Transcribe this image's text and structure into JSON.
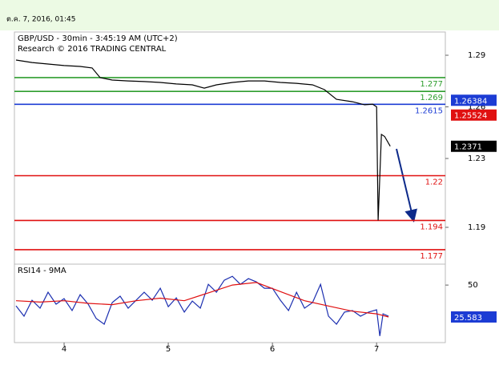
{
  "header": {
    "date": "ต.ค. 7, 2016, 01:45"
  },
  "chart_data": [
    {
      "type": "line",
      "title": "GBP/USD - 30min - 3:45:19 AM (UTC+2)",
      "subtitle": "Research © 2016 TRADING CENTRAL",
      "xlim": [
        3.523,
        7.66
      ],
      "ylim": [
        1.1686,
        1.3035
      ],
      "yticks": [
        1.29,
        1.26,
        1.23,
        1.19
      ],
      "series": [
        {
          "color": "#000000",
          "x": [
            3.538,
            3.692,
            3.846,
            4.0,
            4.154,
            4.269,
            4.346,
            4.462,
            4.615,
            4.769,
            4.923,
            5.077,
            5.231,
            5.346,
            5.462,
            5.615,
            5.769,
            5.923,
            6.077,
            6.231,
            6.385,
            6.5,
            6.615,
            6.769,
            6.885,
            6.962,
            7.0,
            7.015,
            7.046,
            7.077,
            7.131
          ],
          "values": [
            1.2872,
            1.2858,
            1.2849,
            1.284,
            1.2835,
            1.2826,
            1.277,
            1.2756,
            1.2751,
            1.2747,
            1.2742,
            1.2733,
            1.2728,
            1.2709,
            1.2728,
            1.2742,
            1.2751,
            1.2751,
            1.2742,
            1.2737,
            1.2728,
            1.27,
            1.2644,
            1.263,
            1.2612,
            1.2616,
            1.26,
            1.194,
            1.244,
            1.2428,
            1.2371
          ]
        }
      ],
      "levels": [
        {
          "value": 1.277,
          "color": "#2e9e2e"
        },
        {
          "value": 1.269,
          "color": "#2e9e2e"
        },
        {
          "value": 1.2615,
          "color": "#1c3cd4"
        },
        {
          "value": 1.22,
          "color": "#e01010"
        },
        {
          "value": 1.194,
          "color": "#e01010"
        },
        {
          "value": 1.177,
          "color": "#e01010"
        }
      ],
      "markers": [
        {
          "value": 1.26384,
          "color": "#1c3cd4"
        },
        {
          "value": 1.25524,
          "color": "#e01010"
        },
        {
          "value": 1.2371,
          "color": "#000000"
        }
      ]
    },
    {
      "type": "line",
      "title": "RSI14 - 9MA",
      "xlim": [
        3.523,
        7.66
      ],
      "ylim": [
        6,
        66
      ],
      "yticks": [
        50
      ],
      "xticks": [
        4,
        5,
        6,
        7
      ],
      "series": [
        {
          "color": "#1c2fb0",
          "x": [
            3.538,
            3.615,
            3.692,
            3.769,
            3.846,
            3.923,
            4.0,
            4.077,
            4.154,
            4.231,
            4.308,
            4.385,
            4.462,
            4.538,
            4.615,
            4.692,
            4.769,
            4.846,
            4.923,
            5.0,
            5.077,
            5.154,
            5.231,
            5.308,
            5.385,
            5.462,
            5.538,
            5.615,
            5.692,
            5.769,
            5.846,
            5.923,
            6.0,
            6.077,
            6.154,
            6.231,
            6.308,
            6.385,
            6.462,
            6.538,
            6.615,
            6.692,
            6.769,
            6.846,
            6.923,
            7.0,
            7.031,
            7.062,
            7.115
          ],
          "values": [
            34.1,
            26.2,
            38.4,
            32.3,
            44.5,
            35.4,
            39.6,
            30.5,
            42.7,
            35.4,
            24.4,
            20.1,
            36.6,
            41.5,
            32.3,
            38.4,
            44.5,
            38.4,
            47.6,
            33.5,
            40.2,
            29.3,
            37.8,
            32.3,
            50.6,
            44.5,
            53.7,
            56.7,
            50.6,
            54.9,
            52.4,
            47.6,
            47.6,
            38.4,
            30.5,
            44.5,
            32.3,
            36.6,
            50.6,
            26.2,
            20.1,
            29.3,
            30.5,
            26.2,
            29.3,
            31.1,
            11.0,
            28.0,
            26.2
          ]
        },
        {
          "color": "#e01010",
          "x": [
            3.538,
            3.769,
            4.0,
            4.231,
            4.462,
            4.692,
            4.923,
            5.154,
            5.385,
            5.615,
            5.846,
            6.077,
            6.308,
            6.538,
            6.769,
            7.0,
            7.115
          ],
          "values": [
            38,
            37,
            38,
            36,
            35,
            38,
            40,
            38,
            44,
            50,
            52,
            45,
            38,
            34,
            30,
            28,
            25.6
          ]
        }
      ],
      "markers": [
        {
          "value": 25.6252,
          "color": "#e01010"
        },
        {
          "value": 25.583,
          "color": "#1c3cd4"
        }
      ]
    }
  ]
}
